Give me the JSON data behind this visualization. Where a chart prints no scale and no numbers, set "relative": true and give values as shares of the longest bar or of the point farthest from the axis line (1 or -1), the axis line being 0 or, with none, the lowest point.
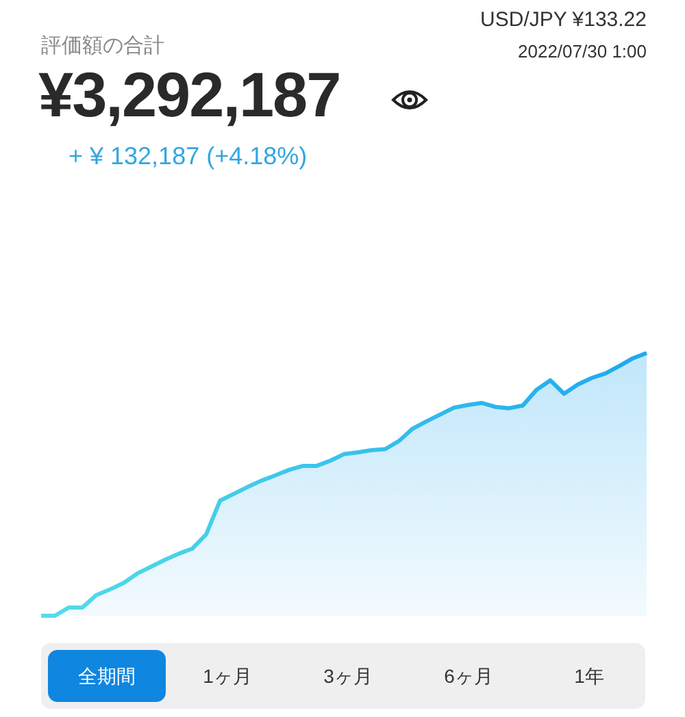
{
  "chart_data": {
    "type": "area",
    "relative": true,
    "title": "評価額の合計",
    "subtitle": "¥3,292,187",
    "annotations": [
      "+ ¥ 132,187 (+4.18%)",
      "USD/JPY ¥133.22",
      "2022/07/30 1:00",
      "全期間",
      "1ヶ月",
      "3ヶ月",
      "6ヶ月",
      "1年"
    ],
    "categories": [
      null,
      null,
      null,
      null,
      null,
      null,
      null,
      null,
      null,
      null,
      null,
      null,
      null,
      null,
      null,
      null,
      null,
      null,
      null,
      null,
      null,
      null,
      null,
      null,
      null,
      null,
      null,
      null,
      null,
      null,
      null,
      null,
      null,
      null,
      null,
      null,
      null,
      null,
      null,
      null,
      null,
      null,
      null,
      null,
      null
    ],
    "series": [
      {
        "color": "#1ea8ef",
        "values": [
          0,
          0,
          0.031,
          0.031,
          0.078,
          0.1,
          0.125,
          0.161,
          0.187,
          0.213,
          0.236,
          0.256,
          0.31,
          0.438,
          0.464,
          0.49,
          0.514,
          0.534,
          0.555,
          0.57,
          0.57,
          0.59,
          0.615,
          0.622,
          0.63,
          0.634,
          0.665,
          0.712,
          0.74,
          0.766,
          0.792,
          0.802,
          0.81,
          0.795,
          0.79,
          0.8,
          0.86,
          0.896,
          0.845,
          0.88,
          0.905,
          0.922,
          0.95,
          0.98,
          1
        ]
      }
    ],
    "marker": "none"
  }
}
